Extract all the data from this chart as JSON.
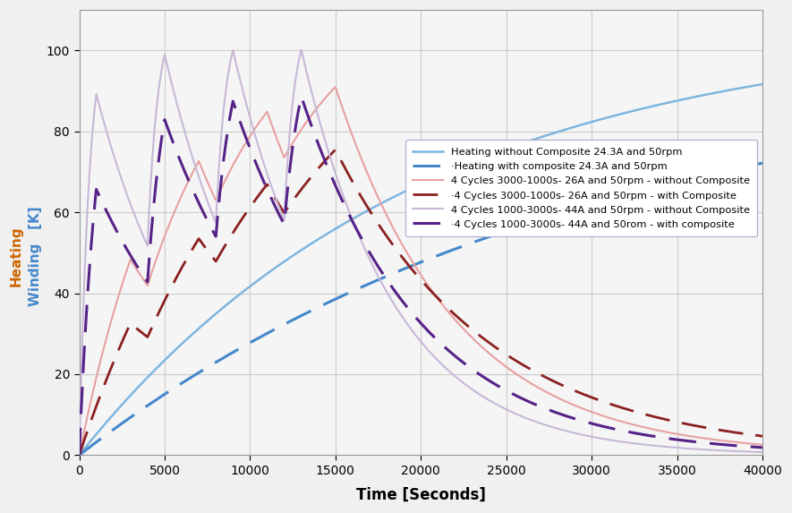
{
  "title": "",
  "xlabel": "Time [Seconds]",
  "ylabel": "Heating  Winding   [K]",
  "xlim": [
    0,
    40000
  ],
  "ylim": [
    0,
    110
  ],
  "xticks": [
    0,
    5000,
    10000,
    15000,
    20000,
    25000,
    30000,
    35000,
    40000
  ],
  "yticks": [
    0,
    20,
    40,
    60,
    80,
    100
  ],
  "background_color": "#f5f5f5",
  "grid_color": "#c8c8c8",
  "series": [
    {
      "label": "Heating without Composite 24.3A and 50rpm",
      "color": "#7eb6e0",
      "linestyle": "solid",
      "linewidth": 1.8
    },
    {
      "label": "·Heating with composite 24.3A and 50rpm",
      "color": "#4488cc",
      "linestyle": "dashed",
      "linewidth": 2.2
    },
    {
      "label": "4 Cycles 3000-1000s- 26A and 50rpm - without Composite",
      "color": "#e8a0a0",
      "linestyle": "solid",
      "linewidth": 1.5
    },
    {
      "label": "·4 Cycles 3000-1000s- 26A and 50rpm - with Composite",
      "color": "#8b2020",
      "linestyle": "dashed",
      "linewidth": 2.0
    },
    {
      "label": "4 Cycles 1000-3000s- 44A and 50rpm - without Composite",
      "color": "#c8b8d8",
      "linestyle": "solid",
      "linewidth": 1.5
    },
    {
      "label": "·4 Cycles 1000-3000s- 44A and 50rom - with composite",
      "color": "#552288",
      "linestyle": "dashed",
      "linewidth": 2.2
    }
  ]
}
